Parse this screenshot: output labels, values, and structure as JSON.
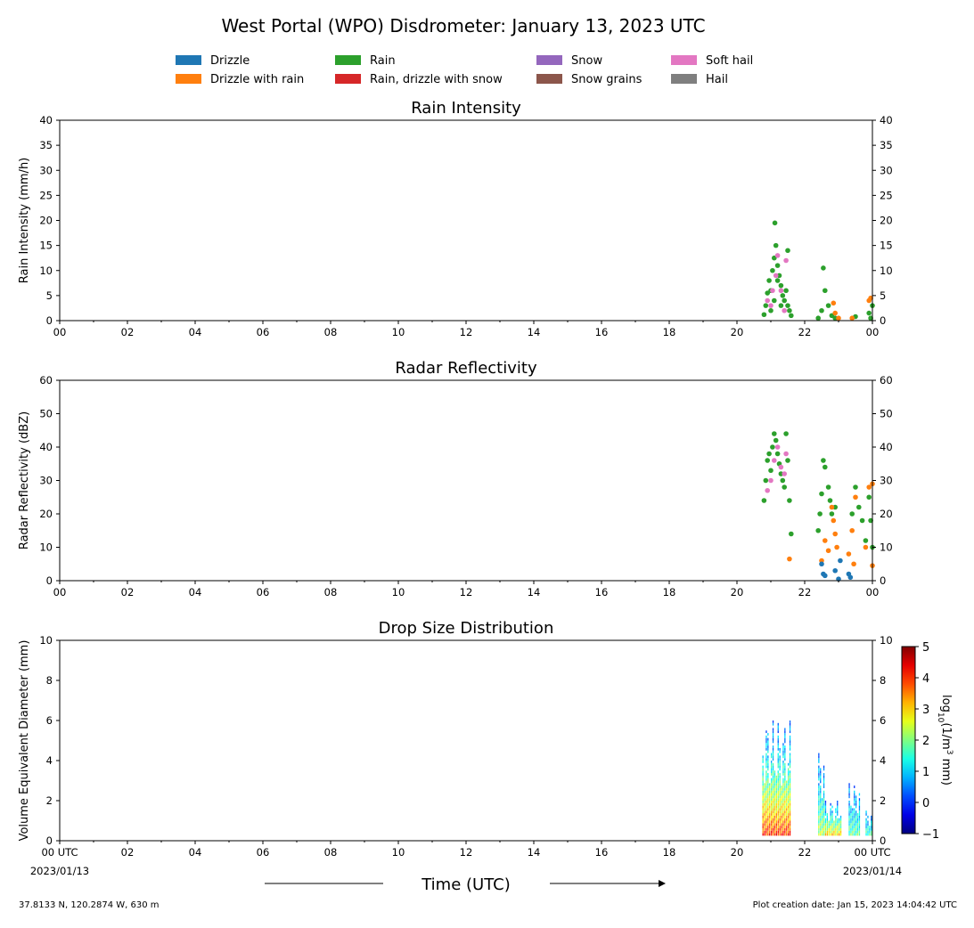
{
  "title": "West Portal (WPO) Disdrometer: January 13, 2023 UTC",
  "legend": {
    "placement": "top-center",
    "items": [
      {
        "label": "Drizzle",
        "color": "#1f77b4"
      },
      {
        "label": "Drizzle with rain",
        "color": "#ff7f0e"
      },
      {
        "label": "Rain",
        "color": "#2ca02c"
      },
      {
        "label": "Rain, drizzle with snow",
        "color": "#d62728"
      },
      {
        "label": "Snow",
        "color": "#9467bd"
      },
      {
        "label": "Snow grains",
        "color": "#8c564b"
      },
      {
        "label": "Soft hail",
        "color": "#e377c2"
      },
      {
        "label": "Hail",
        "color": "#7f7f7f"
      }
    ]
  },
  "x_ticks": [
    "00",
    "02",
    "04",
    "06",
    "08",
    "10",
    "12",
    "14",
    "16",
    "18",
    "20",
    "22",
    "00"
  ],
  "x_ticks_bottom": [
    "00 UTC",
    "02",
    "04",
    "06",
    "08",
    "10",
    "12",
    "14",
    "16",
    "18",
    "20",
    "22",
    "00 UTC"
  ],
  "x_date_start": "2023/01/13",
  "x_date_end": "2023/01/14",
  "x_axis_label": "Time (UTC)",
  "footer_left": "37.8133 N, 120.2874 W, 630 m",
  "footer_right": "Plot creation date: Jan 15, 2023 14:04:42 UTC",
  "colorbar": {
    "label_prefix": "log",
    "label_sub": "10",
    "label_mid": "(1/m",
    "label_sup": "3",
    "label_end": " mm)",
    "ticks": [
      "5",
      "4",
      "3",
      "2",
      "1",
      "0",
      "−1"
    ],
    "range": [
      -1,
      5
    ],
    "colormap": "jet"
  },
  "chart_data": [
    {
      "type": "scatter",
      "title": "Rain Intensity",
      "ylabel": "Rain Intensity (mm/h)",
      "xlim": [
        0,
        24
      ],
      "ylim": [
        0,
        40
      ],
      "y_ticks": [
        "0",
        "5",
        "10",
        "15",
        "20",
        "25",
        "30",
        "35",
        "40"
      ],
      "series": [
        {
          "name": "Rain",
          "color": "#2ca02c",
          "points": [
            [
              20.8,
              1.2
            ],
            [
              20.85,
              3
            ],
            [
              20.9,
              5.5
            ],
            [
              20.95,
              8
            ],
            [
              21.0,
              6
            ],
            [
              21.05,
              10
            ],
            [
              21.1,
              12.5
            ],
            [
              21.12,
              19.5
            ],
            [
              21.15,
              15
            ],
            [
              21.2,
              11
            ],
            [
              21.25,
              9
            ],
            [
              21.3,
              7
            ],
            [
              21.35,
              5
            ],
            [
              21.4,
              4
            ],
            [
              21.45,
              6
            ],
            [
              21.5,
              3
            ],
            [
              21.55,
              2
            ],
            [
              21.6,
              1
            ],
            [
              21.0,
              2
            ],
            [
              21.1,
              4
            ],
            [
              21.2,
              8
            ],
            [
              21.3,
              3
            ],
            [
              21.5,
              14
            ],
            [
              22.4,
              0.5
            ],
            [
              22.5,
              2
            ],
            [
              22.55,
              10.5
            ],
            [
              22.6,
              6
            ],
            [
              22.7,
              3
            ],
            [
              22.8,
              1
            ],
            [
              22.9,
              0.5
            ],
            [
              23.5,
              0.8
            ],
            [
              23.9,
              1.5
            ],
            [
              24.0,
              3
            ],
            [
              23.95,
              0.5
            ]
          ]
        },
        {
          "name": "Soft hail",
          "color": "#e377c2",
          "points": [
            [
              20.9,
              4
            ],
            [
              21.0,
              3
            ],
            [
              21.05,
              6
            ],
            [
              21.15,
              9
            ],
            [
              21.2,
              13
            ],
            [
              21.3,
              6
            ],
            [
              21.4,
              2
            ],
            [
              21.45,
              12
            ]
          ]
        },
        {
          "name": "Drizzle with rain",
          "color": "#ff7f0e",
          "points": [
            [
              22.85,
              3.5
            ],
            [
              22.9,
              1.5
            ],
            [
              23.0,
              0.5
            ],
            [
              23.4,
              0.5
            ],
            [
              23.9,
              4
            ],
            [
              23.95,
              4.5
            ]
          ]
        }
      ]
    },
    {
      "type": "scatter",
      "title": "Radar Reflectivity",
      "ylabel": "Radar Reflectivity (dBZ)",
      "xlim": [
        0,
        24
      ],
      "ylim": [
        0,
        60
      ],
      "y_ticks": [
        "0",
        "10",
        "20",
        "30",
        "40",
        "50",
        "60"
      ],
      "series": [
        {
          "name": "Rain",
          "color": "#2ca02c",
          "points": [
            [
              20.8,
              24
            ],
            [
              20.85,
              30
            ],
            [
              20.9,
              36
            ],
            [
              20.95,
              38
            ],
            [
              21.0,
              33
            ],
            [
              21.05,
              40
            ],
            [
              21.1,
              44
            ],
            [
              21.15,
              42
            ],
            [
              21.2,
              38
            ],
            [
              21.25,
              35
            ],
            [
              21.3,
              32
            ],
            [
              21.35,
              30
            ],
            [
              21.4,
              28
            ],
            [
              21.45,
              44
            ],
            [
              21.5,
              36
            ],
            [
              21.55,
              24
            ],
            [
              21.6,
              14
            ],
            [
              22.4,
              15
            ],
            [
              22.45,
              20
            ],
            [
              22.5,
              26
            ],
            [
              22.55,
              36
            ],
            [
              22.6,
              34
            ],
            [
              22.7,
              28
            ],
            [
              22.75,
              24
            ],
            [
              22.8,
              20
            ],
            [
              22.9,
              22
            ],
            [
              23.4,
              20
            ],
            [
              23.5,
              28
            ],
            [
              23.6,
              22
            ],
            [
              23.7,
              18
            ],
            [
              23.8,
              12
            ],
            [
              23.9,
              25
            ],
            [
              23.95,
              18
            ],
            [
              24.0,
              10
            ]
          ]
        },
        {
          "name": "Soft hail",
          "color": "#e377c2",
          "points": [
            [
              20.9,
              27
            ],
            [
              21.0,
              30
            ],
            [
              21.1,
              36
            ],
            [
              21.2,
              40
            ],
            [
              21.3,
              34
            ],
            [
              21.4,
              32
            ],
            [
              21.45,
              38
            ]
          ]
        },
        {
          "name": "Drizzle with rain",
          "color": "#ff7f0e",
          "points": [
            [
              21.55,
              6.5
            ],
            [
              22.5,
              6
            ],
            [
              22.6,
              12
            ],
            [
              22.7,
              9
            ],
            [
              22.8,
              22
            ],
            [
              22.85,
              18
            ],
            [
              22.9,
              14
            ],
            [
              22.95,
              10
            ],
            [
              23.3,
              8
            ],
            [
              23.4,
              15
            ],
            [
              23.45,
              5
            ],
            [
              23.5,
              25
            ],
            [
              23.9,
              28
            ],
            [
              24.0,
              29
            ],
            [
              23.8,
              10
            ],
            [
              24.0,
              4.5
            ]
          ]
        },
        {
          "name": "Drizzle",
          "color": "#1f77b4",
          "points": [
            [
              22.5,
              5
            ],
            [
              22.55,
              2
            ],
            [
              22.6,
              1.5
            ],
            [
              22.9,
              3
            ],
            [
              23.0,
              0.5
            ],
            [
              23.05,
              6
            ],
            [
              23.3,
              2
            ],
            [
              23.35,
              1
            ]
          ]
        }
      ]
    },
    {
      "type": "heatmap",
      "title": "Drop Size Distribution",
      "ylabel": "Volume Equivalent Diameter (mm)",
      "xlim": [
        0,
        24
      ],
      "ylim": [
        0,
        10
      ],
      "y_ticks": [
        "0",
        "2",
        "4",
        "6",
        "8",
        "10"
      ],
      "columns": [
        {
          "x0": 20.75,
          "x1": 21.6,
          "ymax": 6.0,
          "peak_log10": 4.2
        },
        {
          "x0": 22.4,
          "x1": 22.6,
          "ymax": 4.5,
          "peak_log10": 2.5
        },
        {
          "x0": 22.6,
          "x1": 23.1,
          "ymax": 2.0,
          "peak_log10": 3.5
        },
        {
          "x0": 23.3,
          "x1": 23.65,
          "ymax": 2.8,
          "peak_log10": 2.0
        },
        {
          "x0": 23.8,
          "x1": 24.0,
          "ymax": 1.5,
          "peak_log10": 2.0
        }
      ]
    }
  ]
}
